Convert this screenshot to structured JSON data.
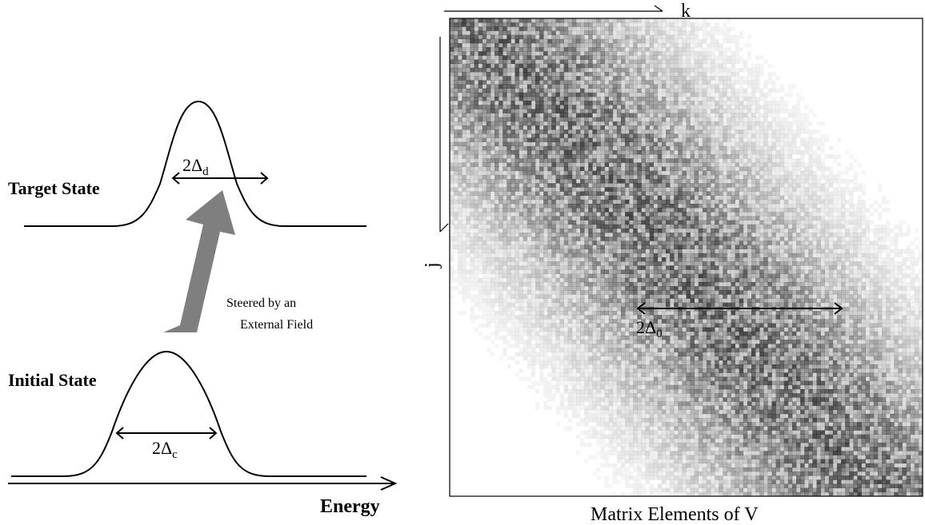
{
  "left_panel": {
    "target_label": "Target State",
    "initial_label": "Initial State",
    "steer_line1": "Steered by an",
    "steer_line2": "External Field",
    "energy_label": "Energy",
    "target_width": {
      "base": "2Δ",
      "sub": "d"
    },
    "initial_width": {
      "base": "2Δ",
      "sub": "c"
    },
    "arrow_color": "#7f7f7f"
  },
  "right_panel": {
    "caption": "Matrix Elements of V",
    "col_axis_label": "k",
    "row_axis_label": "j",
    "band_width": {
      "base": "2Δ",
      "sub": "0"
    },
    "matrix_size": 116,
    "band_halfwidth_fraction": 0.23,
    "cell_color": "#000000"
  }
}
